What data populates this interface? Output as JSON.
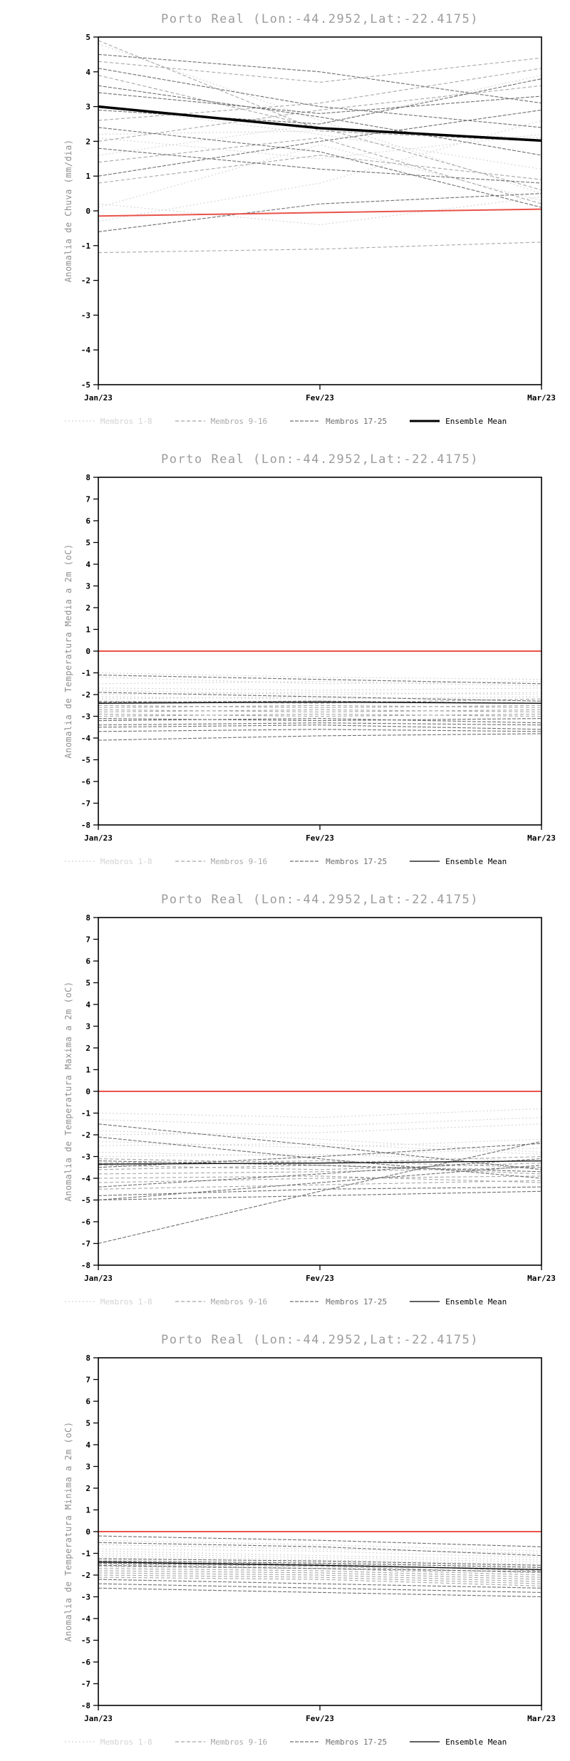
{
  "page": {
    "background": "#ffffff"
  },
  "style": {
    "title_color": "#9c9c9c",
    "axis_label_color": "#8f8f8f",
    "tick_label_color": "#000000",
    "frame_color": "#000000",
    "member_colors": {
      "g1": "#d4d4d4",
      "g2": "#a8a8a8",
      "g3": "#6f6f6f"
    },
    "member_dashes": {
      "g1": "2 3",
      "g2": "5 3",
      "g3": "5 2"
    },
    "mean_color": "#000000",
    "zero_line_color": "#e8534a"
  },
  "legend": {
    "items": [
      {
        "label": "Membros 1-8",
        "group": "g1"
      },
      {
        "label": "Membros 9-16",
        "group": "g2"
      },
      {
        "label": "Membros 17-25",
        "group": "g3"
      },
      {
        "label": "Ensemble Mean",
        "group": "mean"
      }
    ]
  },
  "chart_data": [
    {
      "type": "line",
      "title": "Porto Real (Lon:-44.2952,Lat:-22.4175)",
      "ylabel": "Anomalia de Chuva (mm/dia)",
      "x_categories": [
        "Jan/23",
        "Fev/23",
        "Mar/23"
      ],
      "ylim": [
        -5,
        5
      ],
      "ytick_step": 1,
      "grid": false,
      "legend_position": "bottom",
      "mean_width": 3.5,
      "zero_line": [
        -0.15,
        -0.05,
        0.05
      ],
      "series": {
        "members_1_8": [
          [
            4.8,
            2.6,
            0.5
          ],
          [
            2.1,
            1.5,
            2.2
          ],
          [
            0.1,
            1.9,
            0.3
          ],
          [
            1.6,
            2.5,
            3.9
          ],
          [
            -0.3,
            0.8,
            2.6
          ],
          [
            3.0,
            2.2,
            1.2
          ],
          [
            0.2,
            -0.4,
            0.4
          ],
          [
            2.2,
            2.3,
            2.1
          ]
        ],
        "members_9_16": [
          [
            4.3,
            3.7,
            4.4
          ],
          [
            3.9,
            2.4,
            0.6
          ],
          [
            2.0,
            2.9,
            3.6
          ],
          [
            4.9,
            2.3,
            2.0
          ],
          [
            1.4,
            2.1,
            0.2
          ],
          [
            -1.2,
            -1.1,
            -0.9
          ],
          [
            2.6,
            3.1,
            4.1
          ],
          [
            0.8,
            1.6,
            0.9
          ]
        ],
        "members_17_25": [
          [
            4.5,
            4.0,
            3.1
          ],
          [
            3.4,
            2.8,
            3.3
          ],
          [
            2.4,
            1.7,
            0.1
          ],
          [
            1.0,
            2.0,
            2.9
          ],
          [
            4.1,
            3.0,
            2.4
          ],
          [
            -0.6,
            0.2,
            0.5
          ],
          [
            2.9,
            2.5,
            3.8
          ],
          [
            1.8,
            1.2,
            0.8
          ],
          [
            3.6,
            2.7,
            1.6
          ]
        ],
        "ensemble_mean": [
          3.0,
          2.38,
          2.02
        ]
      }
    },
    {
      "type": "line",
      "title": "Porto Real (Lon:-44.2952,Lat:-22.4175)",
      "ylabel": "Anomalia de Temperatura Media a 2m (oC)",
      "x_categories": [
        "Jan/23",
        "Fev/23",
        "Mar/23"
      ],
      "ylim": [
        -8,
        8
      ],
      "ytick_step": 1,
      "grid": false,
      "legend_position": "bottom",
      "mean_width": 1.3,
      "zero_line": [
        0,
        0,
        0
      ],
      "series": {
        "members_1_8": [
          [
            -1.0,
            -1.2,
            -1.3
          ],
          [
            -1.2,
            -1.5,
            -1.4
          ],
          [
            -1.5,
            -1.4,
            -1.6
          ],
          [
            -1.7,
            -1.8,
            -1.7
          ],
          [
            -1.8,
            -2.0,
            -1.9
          ],
          [
            -2.0,
            -1.9,
            -2.0
          ],
          [
            -2.1,
            -2.2,
            -2.1
          ],
          [
            -2.2,
            -2.1,
            -2.3
          ]
        ],
        "members_9_16": [
          [
            -2.3,
            -2.4,
            -2.2
          ],
          [
            -2.4,
            -2.3,
            -2.4
          ],
          [
            -2.5,
            -2.6,
            -2.5
          ],
          [
            -2.6,
            -2.5,
            -2.6
          ],
          [
            -2.7,
            -2.8,
            -2.7
          ],
          [
            -2.8,
            -2.7,
            -2.8
          ],
          [
            -2.9,
            -3.0,
            -2.9
          ],
          [
            -3.0,
            -2.9,
            -3.0
          ]
        ],
        "members_17_25": [
          [
            -3.1,
            -3.2,
            -3.1
          ],
          [
            -3.2,
            -3.1,
            -3.3
          ],
          [
            -3.4,
            -3.3,
            -3.4
          ],
          [
            -3.5,
            -3.4,
            -3.6
          ],
          [
            -3.7,
            -3.6,
            -3.7
          ],
          [
            -4.1,
            -3.9,
            -3.8
          ],
          [
            -1.1,
            -1.3,
            -1.5
          ],
          [
            -1.9,
            -2.1,
            -2.3
          ],
          [
            -2.35,
            -2.3,
            -2.4
          ]
        ],
        "ensemble_mean": [
          -2.4,
          -2.35,
          -2.4
        ]
      }
    },
    {
      "type": "line",
      "title": "Porto Real (Lon:-44.2952,Lat:-22.4175)",
      "ylabel": "Anomalia de Temperatura Maxima a 2m (oC)",
      "x_categories": [
        "Jan/23",
        "Fev/23",
        "Mar/23"
      ],
      "ylim": [
        -8,
        8
      ],
      "ytick_step": 1,
      "grid": false,
      "legend_position": "bottom",
      "mean_width": 1.3,
      "zero_line": [
        0,
        0,
        0
      ],
      "series": {
        "members_1_8": [
          [
            -1.0,
            -1.2,
            -0.8
          ],
          [
            -1.3,
            -1.6,
            -1.2
          ],
          [
            -1.8,
            -2.2,
            -2.8
          ],
          [
            -2.0,
            -1.9,
            -1.5
          ],
          [
            -2.3,
            -2.6,
            -2.2
          ],
          [
            -2.5,
            -2.4,
            -2.9
          ],
          [
            -2.8,
            -3.0,
            -2.6
          ],
          [
            -3.0,
            -2.9,
            -3.2
          ]
        ],
        "members_9_16": [
          [
            -3.1,
            -3.3,
            -3.0
          ],
          [
            -3.3,
            -3.2,
            -3.5
          ],
          [
            -3.4,
            -3.6,
            -3.3
          ],
          [
            -3.6,
            -3.4,
            -3.8
          ],
          [
            -3.8,
            -3.7,
            -3.5
          ],
          [
            -4.0,
            -3.9,
            -4.2
          ],
          [
            -4.2,
            -4.0,
            -3.9
          ],
          [
            -4.5,
            -4.3,
            -4.1
          ]
        ],
        "members_17_25": [
          [
            -4.8,
            -4.5,
            -4.4
          ],
          [
            -5.0,
            -4.8,
            -4.6
          ],
          [
            -5.0,
            -4.2,
            -3.4
          ],
          [
            -7.0,
            -4.6,
            -2.3
          ],
          [
            -2.1,
            -3.1,
            -4.0
          ],
          [
            -1.5,
            -2.5,
            -3.6
          ],
          [
            -3.5,
            -3.0,
            -2.4
          ],
          [
            -4.4,
            -3.8,
            -3.1
          ],
          [
            -3.2,
            -3.4,
            -3.7
          ]
        ],
        "ensemble_mean": [
          -3.35,
          -3.3,
          -3.2
        ]
      }
    },
    {
      "type": "line",
      "title": "Porto Real (Lon:-44.2952,Lat:-22.4175)",
      "ylabel": "Anomalia de Temperatura Minima a 2m (oC)",
      "x_categories": [
        "Jan/23",
        "Fev/23",
        "Mar/23"
      ],
      "ylim": [
        -8,
        8
      ],
      "ytick_step": 1,
      "grid": false,
      "legend_position": "bottom",
      "mean_width": 1.3,
      "zero_line": [
        0,
        0,
        0
      ],
      "series": {
        "members_1_8": [
          [
            -0.4,
            -0.6,
            -0.9
          ],
          [
            -0.6,
            -0.8,
            -1.0
          ],
          [
            -0.8,
            -0.9,
            -1.2
          ],
          [
            -0.9,
            -1.1,
            -1.3
          ],
          [
            -1.0,
            -1.2,
            -1.4
          ],
          [
            -1.1,
            -1.3,
            -1.5
          ],
          [
            -1.2,
            -1.4,
            -1.6
          ],
          [
            -1.3,
            -1.5,
            -1.7
          ]
        ],
        "members_9_16": [
          [
            -1.4,
            -1.5,
            -1.8
          ],
          [
            -1.5,
            -1.6,
            -1.9
          ],
          [
            -1.6,
            -1.7,
            -2.0
          ],
          [
            -1.7,
            -1.8,
            -2.1
          ],
          [
            -1.8,
            -1.9,
            -2.2
          ],
          [
            -1.9,
            -2.0,
            -2.3
          ],
          [
            -2.0,
            -2.1,
            -2.4
          ],
          [
            -2.1,
            -2.2,
            -2.5
          ]
        ],
        "members_17_25": [
          [
            -2.2,
            -2.4,
            -2.6
          ],
          [
            -2.4,
            -2.6,
            -2.8
          ],
          [
            -2.6,
            -2.8,
            -3.0
          ],
          [
            -0.2,
            -0.4,
            -0.7
          ],
          [
            -0.5,
            -0.7,
            -1.1
          ],
          [
            -1.45,
            -1.55,
            -1.75
          ],
          [
            -1.35,
            -1.45,
            -1.65
          ],
          [
            -1.55,
            -1.7,
            -1.85
          ],
          [
            -1.25,
            -1.35,
            -1.55
          ]
        ],
        "ensemble_mean": [
          -1.4,
          -1.55,
          -1.75
        ]
      }
    }
  ]
}
